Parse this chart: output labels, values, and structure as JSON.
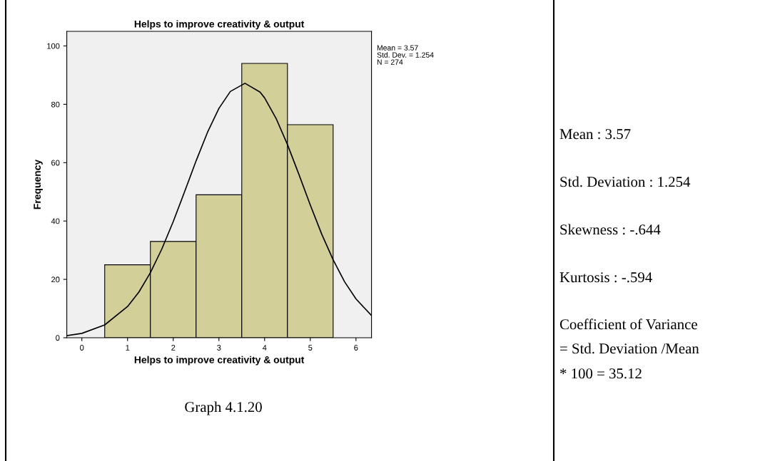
{
  "chart_data": [
    {
      "type": "histogram",
      "title": "Helps to improve creativity & output",
      "xlabel": "Helps to improve creativity & output",
      "ylabel": "Frequency",
      "bins": [
        0.5,
        1.5,
        2.5,
        3.5,
        4.5,
        5.5
      ],
      "values": [
        25,
        33,
        49,
        94,
        73
      ],
      "color": "#d3cf98",
      "series": [
        {
          "type": "line",
          "color": "#000000",
          "x": [
            -0.33,
            0,
            0.5,
            1,
            1.25,
            1.5,
            1.75,
            2,
            2.25,
            2.5,
            2.75,
            3,
            3.25,
            3.57,
            3.9,
            4,
            4.25,
            4.5,
            4.75,
            5,
            5.25,
            5.5,
            5.75,
            6,
            6.34
          ],
          "values": [
            0.7,
            1.5,
            4.4,
            10.7,
            15.7,
            22.3,
            30.4,
            39.8,
            50.1,
            60.6,
            70.4,
            78.6,
            84.4,
            87.2,
            84.2,
            82.2,
            75.2,
            66.2,
            56.0,
            45.5,
            35.5,
            26.7,
            19.2,
            13.3,
            7.6
          ]
        }
      ],
      "xlim": [
        -0.33,
        6.34
      ],
      "ylim": [
        0,
        105
      ],
      "xticks": [
        0,
        1,
        2,
        3,
        4,
        5,
        6
      ],
      "yticks": [
        0,
        20,
        40,
        60,
        80,
        100
      ],
      "grid": false,
      "annotations": [
        "Mean = 3.57",
        "Std. Dev. = 1.254",
        "N = 274",
        "Graph 4.1.20"
      ]
    },
    {
      "type": "other",
      "annotations": [
        "Mean : 3.57",
        "Std. Deviation : 1.254",
        "Skewness : -.644",
        "Kurtosis : -.594",
        "Coefficient of Variance",
        "= Std. Deviation /Mean",
        "* 100 = 35.12"
      ]
    }
  ]
}
